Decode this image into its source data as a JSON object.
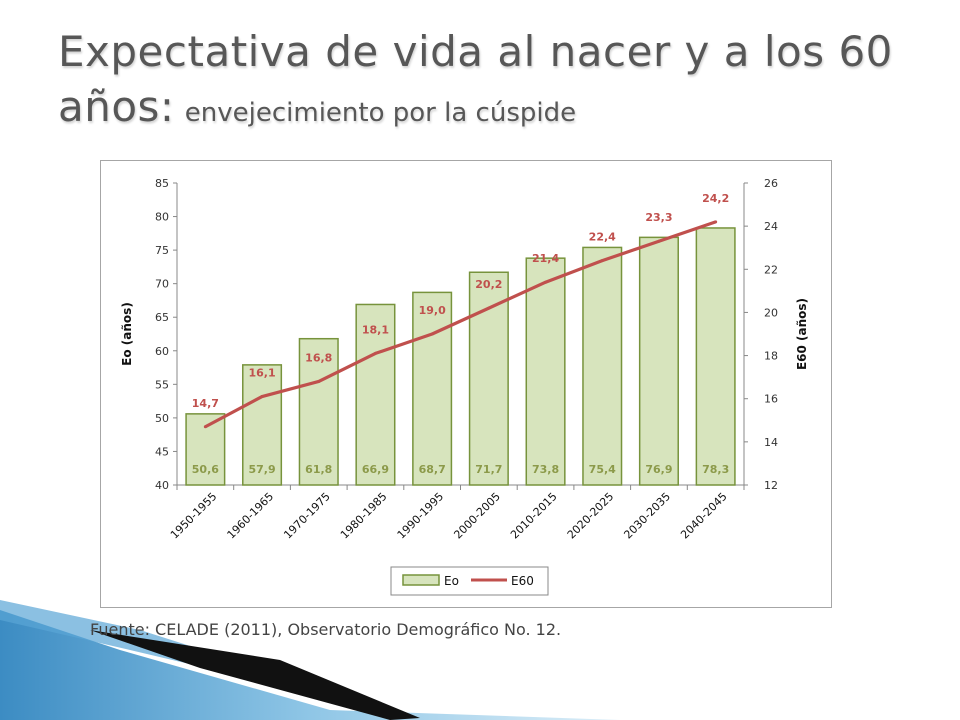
{
  "slide": {
    "title_main": "Expectativa de vida al nacer y a los 60 años:",
    "title_sub": "envejecimiento por la cúspide",
    "source": "Fuente: CELADE (2011), Observatorio Demográfico No. 12."
  },
  "colors": {
    "bar_fill": "#d7e4bd",
    "bar_stroke": "#77933c",
    "line": "#c0504d",
    "bar_label": "#8c9a4a",
    "line_label": "#c0504d"
  },
  "chart_data": {
    "type": "bar",
    "categories": [
      "1950-1955",
      "1960-1965",
      "1970-1975",
      "1980-1985",
      "1990-1995",
      "2000-2005",
      "2010-2015",
      "2020-2025",
      "2030-2035",
      "2040-2045"
    ],
    "series": [
      {
        "name": "Eo",
        "type": "bar",
        "axis": "left",
        "values": [
          50.6,
          57.9,
          61.8,
          66.9,
          68.7,
          71.7,
          73.8,
          75.4,
          76.9,
          78.3
        ],
        "labels": [
          "50,6",
          "57,9",
          "61,8",
          "66,9",
          "68,7",
          "71,7",
          "73,8",
          "75,4",
          "76,9",
          "78,3"
        ]
      },
      {
        "name": "E60",
        "type": "line",
        "axis": "right",
        "values": [
          14.7,
          16.1,
          16.8,
          18.1,
          19.0,
          20.2,
          21.4,
          22.4,
          23.3,
          24.2
        ],
        "labels": [
          "14,7",
          "16,1",
          "16,8",
          "18,1",
          "19,0",
          "20,2",
          "21,4",
          "22,4",
          "23,3",
          "24,2"
        ]
      }
    ],
    "ylabel": "Eo (años)",
    "y2label": "E60 (años)",
    "ylim": [
      40,
      85
    ],
    "yticks": [
      40,
      45,
      50,
      55,
      60,
      65,
      70,
      75,
      80,
      85
    ],
    "y2lim": [
      12,
      26
    ],
    "y2ticks": [
      12,
      14,
      16,
      18,
      20,
      22,
      24,
      26
    ],
    "legend_position": "bottom",
    "grid": false
  }
}
